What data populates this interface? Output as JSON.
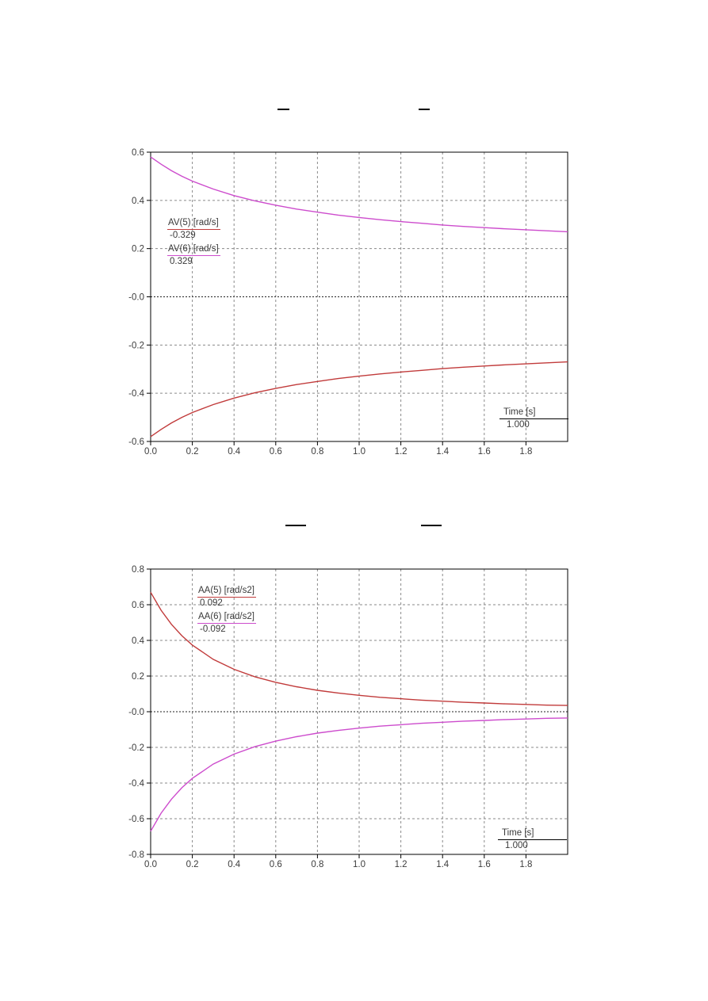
{
  "page": {
    "background": "#ffffff"
  },
  "chart_data": [
    {
      "type": "line",
      "title": "",
      "xlabel": "Time [s]",
      "ylabel": "",
      "xlim": [
        0,
        2.0
      ],
      "ylim": [
        -0.6,
        0.6
      ],
      "grid": true,
      "legend_position": "upper-left-inside",
      "x_tick_labels": [
        "0.0",
        "0.2",
        "0.4",
        "0.6",
        "0.8",
        "1.0",
        "1.2",
        "1.4",
        "1.6",
        "1.8"
      ],
      "x_tick_values": [
        0,
        0.2,
        0.4,
        0.6,
        0.8,
        1.0,
        1.2,
        1.4,
        1.6,
        1.8
      ],
      "y_tick_labels": [
        "0.6",
        "0.4",
        "0.2",
        "-0.0",
        "-0.2",
        "-0.4",
        "-0.6"
      ],
      "y_tick_values": [
        0.6,
        0.4,
        0.2,
        0,
        -0.2,
        -0.4,
        -0.6
      ],
      "time_legend": {
        "label": "Time [s]",
        "value": "1.000"
      },
      "x": [
        0,
        0.05,
        0.1,
        0.15,
        0.2,
        0.3,
        0.4,
        0.5,
        0.6,
        0.7,
        0.8,
        0.9,
        1.0,
        1.1,
        1.2,
        1.3,
        1.4,
        1.5,
        1.6,
        1.7,
        1.8,
        1.9,
        2.0
      ],
      "series": [
        {
          "name": "AV(5)",
          "label": "AV(5) [rad/s]",
          "cursor_value": "-0.329",
          "color": "#c13b3b",
          "values": [
            -0.58,
            -0.55,
            -0.523,
            -0.5,
            -0.48,
            -0.447,
            -0.42,
            -0.398,
            -0.38,
            -0.364,
            -0.351,
            -0.339,
            -0.329,
            -0.32,
            -0.312,
            -0.305,
            -0.298,
            -0.292,
            -0.287,
            -0.282,
            -0.278,
            -0.274,
            -0.27
          ]
        },
        {
          "name": "AV(6)",
          "label": "AV(6) [rad/s]",
          "cursor_value": "0.329",
          "color": "#cd4ccd",
          "values": [
            0.58,
            0.55,
            0.523,
            0.5,
            0.48,
            0.447,
            0.42,
            0.398,
            0.38,
            0.364,
            0.351,
            0.339,
            0.329,
            0.32,
            0.312,
            0.305,
            0.298,
            0.292,
            0.287,
            0.282,
            0.278,
            0.274,
            0.27
          ]
        }
      ]
    },
    {
      "type": "line",
      "title": "",
      "xlabel": "Time [s]",
      "ylabel": "",
      "xlim": [
        0,
        2.0
      ],
      "ylim": [
        -0.8,
        0.8
      ],
      "grid": true,
      "legend_position": "upper-left-inside",
      "x_tick_labels": [
        "0.0",
        "0.2",
        "0.4",
        "0.6",
        "0.8",
        "1.0",
        "1.2",
        "1.4",
        "1.6",
        "1.8"
      ],
      "x_tick_values": [
        0,
        0.2,
        0.4,
        0.6,
        0.8,
        1.0,
        1.2,
        1.4,
        1.6,
        1.8
      ],
      "y_tick_labels": [
        "0.8",
        "0.6",
        "0.4",
        "0.2",
        "-0.0",
        "-0.2",
        "-0.4",
        "-0.6",
        "-0.8"
      ],
      "y_tick_values": [
        0.8,
        0.6,
        0.4,
        0.2,
        0,
        -0.2,
        -0.4,
        -0.6,
        -0.8
      ],
      "time_legend": {
        "label": "Time [s]",
        "value": "1.000"
      },
      "x": [
        0,
        0.05,
        0.1,
        0.15,
        0.2,
        0.3,
        0.4,
        0.5,
        0.6,
        0.7,
        0.8,
        0.9,
        1.0,
        1.1,
        1.2,
        1.3,
        1.4,
        1.5,
        1.6,
        1.7,
        1.8,
        1.9,
        2.0
      ],
      "series": [
        {
          "name": "AA(5)",
          "label": "AA(5) [rad/s2]",
          "cursor_value": "0.092",
          "color": "#c13b3b",
          "values": [
            0.67,
            0.569,
            0.49,
            0.426,
            0.374,
            0.294,
            0.238,
            0.196,
            0.165,
            0.14,
            0.12,
            0.105,
            0.092,
            0.081,
            0.073,
            0.065,
            0.059,
            0.053,
            0.049,
            0.044,
            0.041,
            0.037,
            0.035
          ]
        },
        {
          "name": "AA(6)",
          "label": "AA(6) [rad/s2]",
          "cursor_value": "-0.092",
          "color": "#cd4ccd",
          "values": [
            -0.67,
            -0.569,
            -0.49,
            -0.426,
            -0.374,
            -0.294,
            -0.238,
            -0.196,
            -0.165,
            -0.14,
            -0.12,
            -0.105,
            -0.092,
            -0.081,
            -0.073,
            -0.065,
            -0.059,
            -0.053,
            -0.049,
            -0.044,
            -0.041,
            -0.037,
            -0.035
          ]
        }
      ]
    }
  ]
}
